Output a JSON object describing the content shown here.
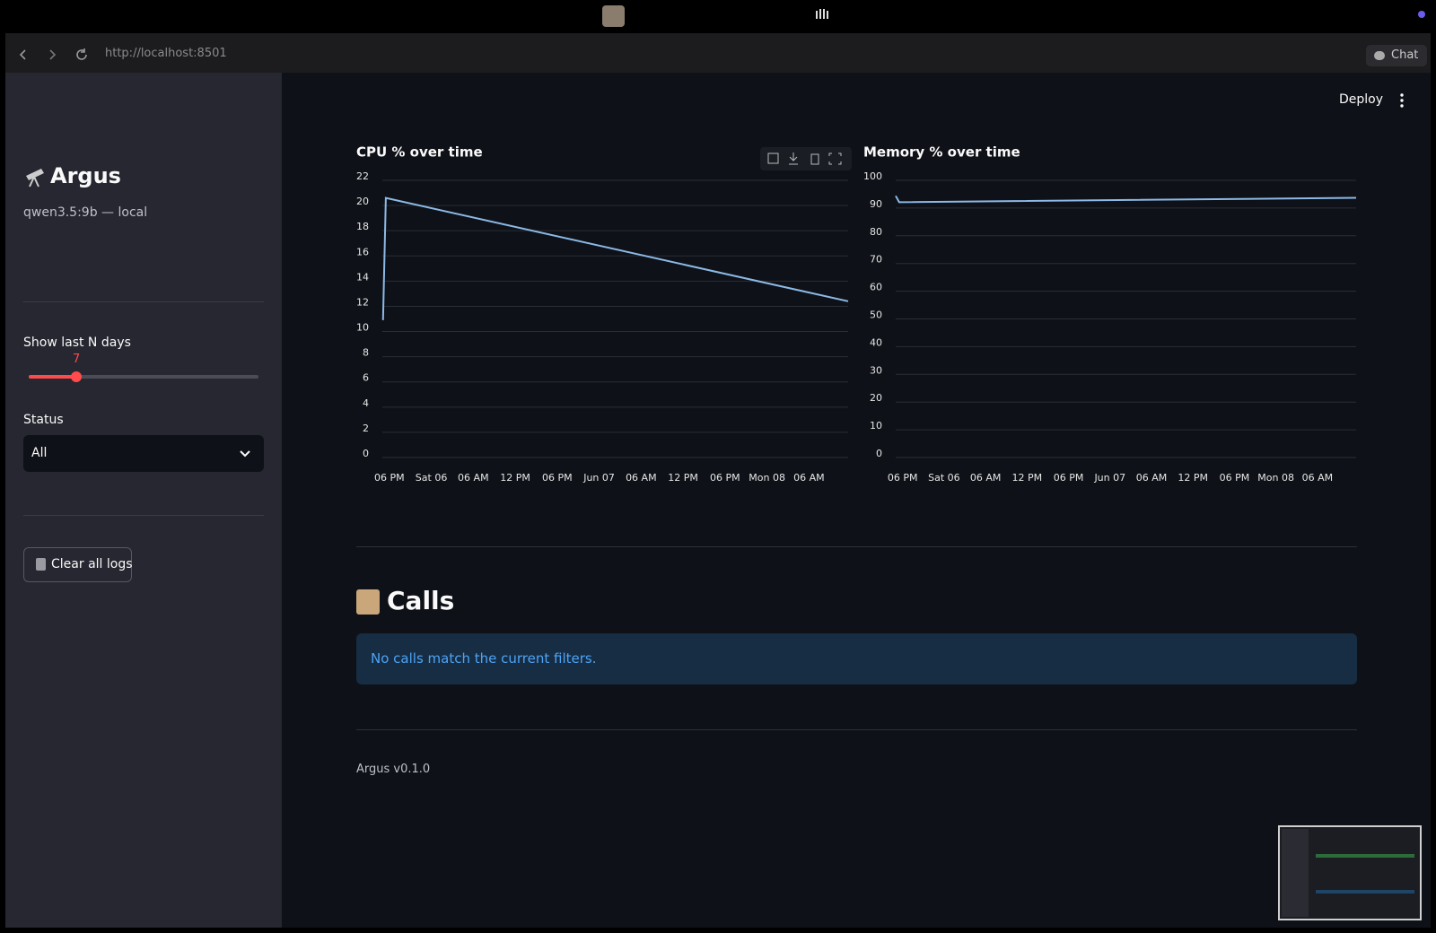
{
  "browser": {
    "url": "http://localhost:8501",
    "chat": "Chat"
  },
  "header": {
    "deploy": "Deploy"
  },
  "sidebar": {
    "title": "Argus",
    "subtitle": "qwen3.5:9b — local",
    "slider_label": "Show last N days",
    "slider_value": 7,
    "status_label": "Status",
    "status_value": "All",
    "clear_button": "Clear all logs"
  },
  "chart_data": [
    {
      "type": "line",
      "title": "CPU % over time",
      "color": "#8cb9e6",
      "grid": true,
      "x": [
        -0.9,
        -0.5,
        65.6
      ],
      "values": [
        10.9,
        20.6,
        12.4
      ],
      "xlim": [
        -1,
        65.6
      ],
      "xticks": [
        {
          "value": 0,
          "label": "06 PM"
        },
        {
          "value": 6,
          "label": "Sat 06"
        },
        {
          "value": 12,
          "label": "06 AM"
        },
        {
          "value": 18,
          "label": "12 PM"
        },
        {
          "value": 24,
          "label": "06 PM"
        },
        {
          "value": 30,
          "label": "Jun 07"
        },
        {
          "value": 36,
          "label": "06 AM"
        },
        {
          "value": 42,
          "label": "12 PM"
        },
        {
          "value": 48,
          "label": "06 PM"
        },
        {
          "value": 54,
          "label": "Mon 08"
        },
        {
          "value": 60,
          "label": "06 AM"
        }
      ],
      "ylim": [
        0,
        22
      ],
      "yticks": [
        0,
        2,
        4,
        6,
        8,
        10,
        12,
        14,
        16,
        18,
        20,
        22
      ]
    },
    {
      "type": "line",
      "title": "Memory % over time",
      "color": "#8cb9e6",
      "grid": true,
      "x": [
        -1,
        -0.5,
        65.6
      ],
      "values": [
        94.4,
        92.1,
        93.7
      ],
      "xlim": [
        -1,
        65.6
      ],
      "xticks": [
        {
          "value": 0,
          "label": "06 PM"
        },
        {
          "value": 6,
          "label": "Sat 06"
        },
        {
          "value": 12,
          "label": "06 AM"
        },
        {
          "value": 18,
          "label": "12 PM"
        },
        {
          "value": 24,
          "label": "06 PM"
        },
        {
          "value": 30,
          "label": "Jun 07"
        },
        {
          "value": 36,
          "label": "06 AM"
        },
        {
          "value": 42,
          "label": "12 PM"
        },
        {
          "value": 48,
          "label": "06 PM"
        },
        {
          "value": 54,
          "label": "Mon 08"
        },
        {
          "value": 60,
          "label": "06 AM"
        }
      ],
      "ylim": [
        0,
        100
      ],
      "yticks": [
        0,
        10,
        20,
        30,
        40,
        50,
        60,
        70,
        80,
        90,
        100
      ]
    }
  ],
  "calls": {
    "heading": "Calls",
    "empty_message": "No calls match the current filters."
  },
  "footer": {
    "version": "Argus v0.1.0"
  }
}
